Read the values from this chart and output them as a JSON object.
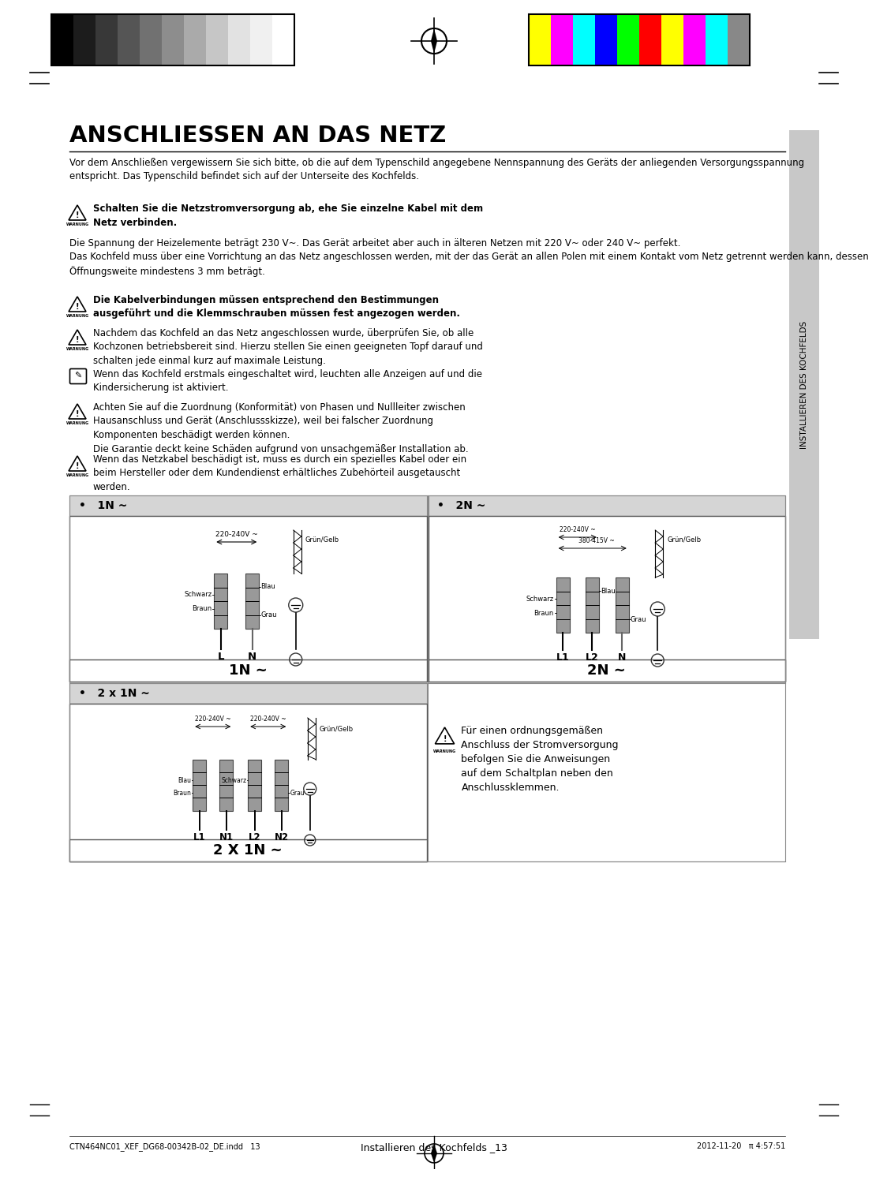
{
  "title": "ANSCHLIESSEN AN DAS NETZ",
  "bg_color": "#ffffff",
  "para1": "Vor dem Anschließen vergewissern Sie sich bitte, ob die auf dem Typenschild angegebene Nennspannung des Geräts der anliegenden Versorgungsspannung\nentspricht. Das Typenschild befindet sich auf der Unterseite des Kochfelds.",
  "warn1_bold": "Schalten Sie die Netzstromversorgung ab, ehe Sie einzelne Kabel mit dem\nNetz verbinden.",
  "para2": "Die Spannung der Heizelemente beträgt 230 V~. Das Gerät arbeitet aber auch in älteren Netzen mit 220 V~ oder 240 V~ perfekt.\nDas Kochfeld muss über eine Vorrichtung an das Netz angeschlossen werden, mit der das Gerät an allen Polen mit einem Kontakt vom Netz getrennt werden kann, dessen\nÖffnungsweite mindestens 3 mm beträgt.",
  "warn2_bold": "Die Kabelverbindungen müssen entsprechend den Bestimmungen\nausgeführt und die Klemmschrauben müssen fest angezogen werden.",
  "warn3": "Nachdem das Kochfeld an das Netz angeschlossen wurde, überprüfen Sie, ob alle\nKochzonen betriebsbereit sind. Hierzu stellen Sie einen geeigneten Topf darauf und\nschalten jede einmal kurz auf maximale Leistung.",
  "note1": "Wenn das Kochfeld erstmals eingeschaltet wird, leuchten alle Anzeigen auf und die\nKindersicherung ist aktiviert.",
  "warn4": "Achten Sie auf die Zuordnung (Konformität) von Phasen und Nullleiter zwischen\nHausanschluss und Gerät (Anschlussskizze), weil bei falscher Zuordnung\nKomponenten beschädigt werden können.\nDie Garantie deckt keine Schäden aufgrund von unsachgemäßer Installation ab.",
  "warn5": "Wenn das Netzkabel beschädigt ist, muss es durch ein spezielles Kabel oder ein\nbeim Hersteller oder dem Kundendienst erhältliches Zubehörteil ausgetauscht\nwerden.",
  "section1N": "1N ~",
  "section2N": "2N ~",
  "section2x1N": "2 x 1N ~",
  "warn_right2": "Für einen ordnungsgemäßen\nAnschluss der Stromversorgung\nbefolgen Sie die Anweisungen\nauf dem Schaltplan neben den\nAnschlussklemmen.",
  "footer_left": "CTN464NC01_XEF_DG68-00342B-02_DE.indd   13",
  "footer_right": "2012-11-20   π 4:57:51",
  "footer_center": "Installieren des Kochfelds _13",
  "sidebar_text": "INSTALLIEREN DES KOCHFELDS",
  "grays": [
    "#000000",
    "#1c1c1c",
    "#383838",
    "#555555",
    "#717171",
    "#8d8d8d",
    "#aaaaaa",
    "#c6c6c6",
    "#e2e2e2",
    "#f0f0f0",
    "#ffffff"
  ],
  "colors_right": [
    "#ffff00",
    "#ff00ff",
    "#00ffff",
    "#0000ff",
    "#00ff00",
    "#ff0000",
    "#ffff00",
    "#ff00ff",
    "#00ffff",
    "#888888"
  ]
}
